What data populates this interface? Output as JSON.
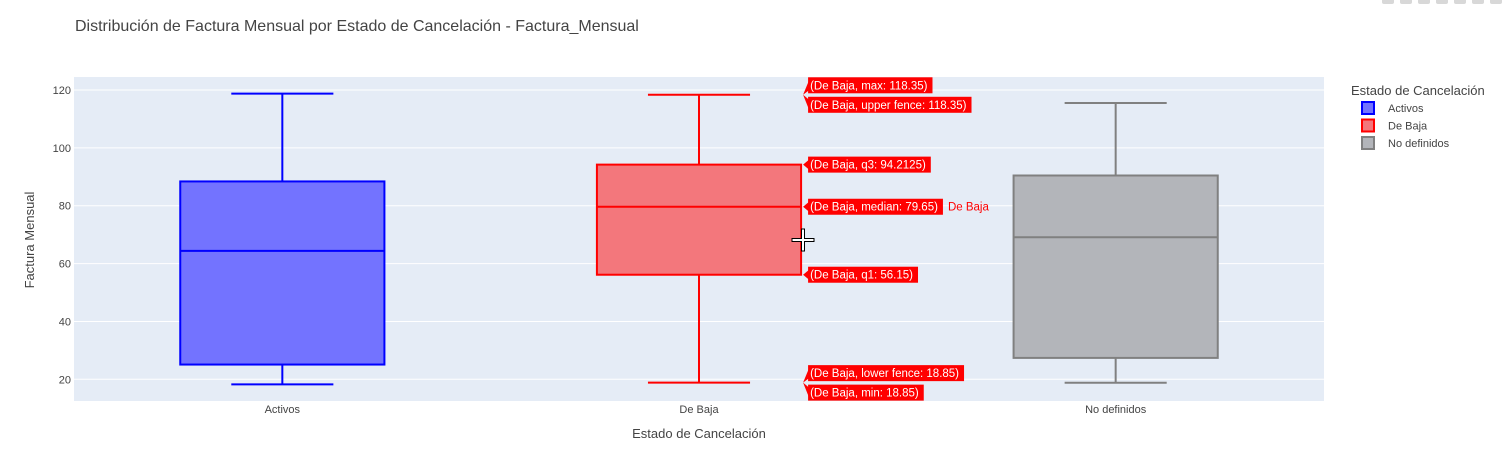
{
  "chart_data": {
    "type": "box",
    "title": "Distribución de Factura Mensual por Estado de Cancelación - Factura_Mensual",
    "xlabel": "Estado de Cancelación",
    "ylabel": "Factura Mensual",
    "categories": [
      "Activos",
      "De Baja",
      "No definidos"
    ],
    "ylim": [
      12.5,
      124.5
    ],
    "yticks": [
      20,
      40,
      60,
      80,
      100,
      120
    ],
    "grid": true,
    "legend": {
      "title": "Estado de Cancelación",
      "placement": "top-right",
      "items": [
        {
          "name": "Activos",
          "color": "#0000ff"
        },
        {
          "name": "De Baja",
          "color": "#ff0000"
        },
        {
          "name": "No definidos",
          "color": "#808080"
        }
      ]
    },
    "series": [
      {
        "name": "Activos",
        "color": "#0000ff",
        "fill": "#7373ff",
        "lower_fence": 18.25,
        "q1": 25.1,
        "median": 64.4,
        "q3": 88.4,
        "upper_fence": 118.75
      },
      {
        "name": "De Baja",
        "color": "#ff0000",
        "fill": "#f3777c",
        "lower_fence": 18.85,
        "q1": 56.15,
        "median": 79.65,
        "q3": 94.2125,
        "upper_fence": 118.35
      },
      {
        "name": "No definidos",
        "color": "#808080",
        "fill": "#b3b5ba",
        "lower_fence": 18.8,
        "q1": 27.4,
        "median": 69.1,
        "q3": 90.45,
        "upper_fence": 115.5
      }
    ],
    "hover": {
      "trace_label": "De Baja",
      "labels": [
        {
          "text": "(De Baja, max: 118.35)",
          "value": 118.35
        },
        {
          "text": "(De Baja, upper fence: 118.35)",
          "value": 118.35
        },
        {
          "text": "(De Baja, q3: 94.2125)",
          "value": 94.2125
        },
        {
          "text": "(De Baja, median: 79.65)",
          "value": 79.65
        },
        {
          "text": "(De Baja, q1: 56.15)",
          "value": 56.15
        },
        {
          "text": "(De Baja, lower fence: 18.85)",
          "value": 18.85
        },
        {
          "text": "(De Baja, min: 18.85)",
          "value": 18.85
        }
      ]
    }
  }
}
